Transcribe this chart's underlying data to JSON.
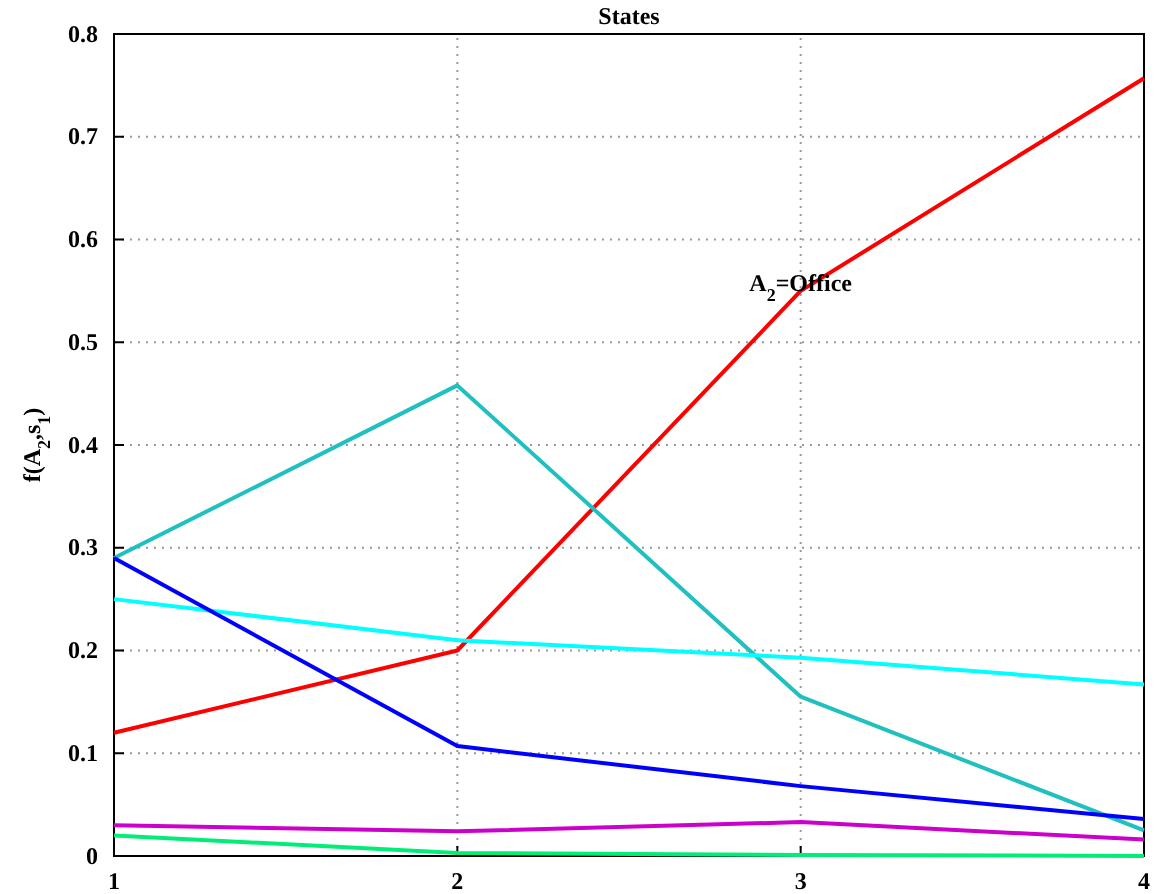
{
  "chart_data": {
    "type": "line",
    "title": "States",
    "ylabel": "f(A$_{2}$,s$_{1}$)",
    "x": [
      1,
      2,
      3,
      4
    ],
    "xlim": [
      1,
      4
    ],
    "xticks": [
      1,
      2,
      3,
      4
    ],
    "ylim": [
      0,
      0.8
    ],
    "yticks": [
      0,
      0.1,
      0.2,
      0.3,
      0.4,
      0.5,
      0.6,
      0.7,
      0.8
    ],
    "grid": true,
    "line_style": "solid",
    "annotations": [
      {
        "text": "A$_{2}$=Office",
        "x": 3,
        "y": 0.55
      }
    ],
    "series": [
      {
        "color": "#ff0000",
        "values": [
          0.12,
          0.2,
          0.55,
          0.757
        ]
      },
      {
        "color": "#20c0c0",
        "values": [
          0.29,
          0.458,
          0.155,
          0.025
        ]
      },
      {
        "color": "#00ffff",
        "values": [
          0.25,
          0.21,
          0.193,
          0.167
        ]
      },
      {
        "color": "#0000ff",
        "values": [
          0.29,
          0.107,
          0.068,
          0.036
        ]
      },
      {
        "color": "#cc00cc",
        "values": [
          0.03,
          0.024,
          0.033,
          0.016
        ]
      },
      {
        "color": "#00ee77",
        "values": [
          0.02,
          0.003,
          0.001,
          0.0
        ]
      }
    ]
  }
}
